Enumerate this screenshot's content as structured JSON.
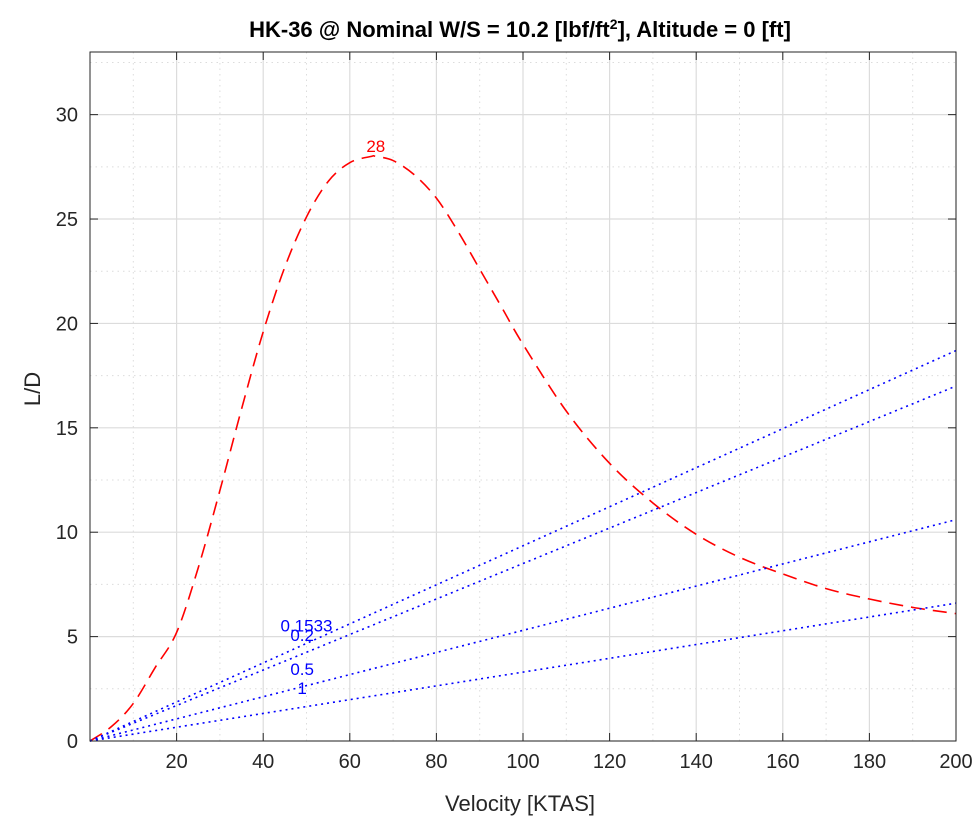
{
  "chart_data": {
    "type": "line",
    "title": "HK-36 @ Nominal W/S = 10.2 [lbf/ft",
    "title_sup": "2",
    "title_suffix": "], Altitude = 0 [ft]",
    "xlabel": "Velocity [KTAS]",
    "ylabel": "L/D",
    "xlim": [
      0,
      200
    ],
    "ylim": [
      0,
      33
    ],
    "xticks": [
      20,
      40,
      60,
      80,
      100,
      120,
      140,
      160,
      180,
      200
    ],
    "yticks": [
      0,
      5,
      10,
      15,
      20,
      25,
      30
    ],
    "grid": true,
    "minor_grid": true,
    "colors": {
      "ld_curve": "#ff0000",
      "lines": "#0000ff",
      "grid": "#dcdcdc",
      "axes": "#262626"
    },
    "series": [
      {
        "label": "28",
        "label_position": [
          66,
          28.2
        ],
        "style": "dashed",
        "color": "#ff0000",
        "x": [
          0,
          5,
          10,
          15,
          20,
          25,
          30,
          35,
          40,
          45,
          50,
          55,
          60,
          65,
          66,
          70,
          75,
          80,
          85,
          90,
          95,
          100,
          110,
          120,
          130,
          140,
          150,
          160,
          170,
          180,
          190,
          200
        ],
        "y": [
          0,
          0.7,
          1.8,
          3.5,
          5.2,
          8.3,
          12.0,
          15.9,
          19.6,
          22.7,
          25.1,
          26.8,
          27.7,
          28.0,
          28.0,
          27.8,
          27.1,
          26.0,
          24.4,
          22.6,
          20.8,
          19.0,
          15.8,
          13.3,
          11.4,
          9.9,
          8.8,
          8.0,
          7.3,
          6.8,
          6.4,
          6.1
        ]
      },
      {
        "label": "0.1533",
        "label_position": [
          50,
          5.25
        ],
        "style": "dotted",
        "color": "#0000ff",
        "x": [
          0,
          200
        ],
        "y": [
          0,
          18.7
        ]
      },
      {
        "label": "0.2",
        "label_position": [
          49,
          4.8
        ],
        "style": "dotted",
        "color": "#0000ff",
        "x": [
          0,
          200
        ],
        "y": [
          0,
          17.0
        ]
      },
      {
        "label": "0.5",
        "label_position": [
          49,
          3.15
        ],
        "style": "dotted",
        "color": "#0000ff",
        "x": [
          0,
          200
        ],
        "y": [
          0,
          10.6
        ]
      },
      {
        "label": "1",
        "label_position": [
          49,
          2.25
        ],
        "style": "dotted",
        "color": "#0000ff",
        "x": [
          0,
          200
        ],
        "y": [
          0,
          6.6
        ]
      }
    ]
  }
}
